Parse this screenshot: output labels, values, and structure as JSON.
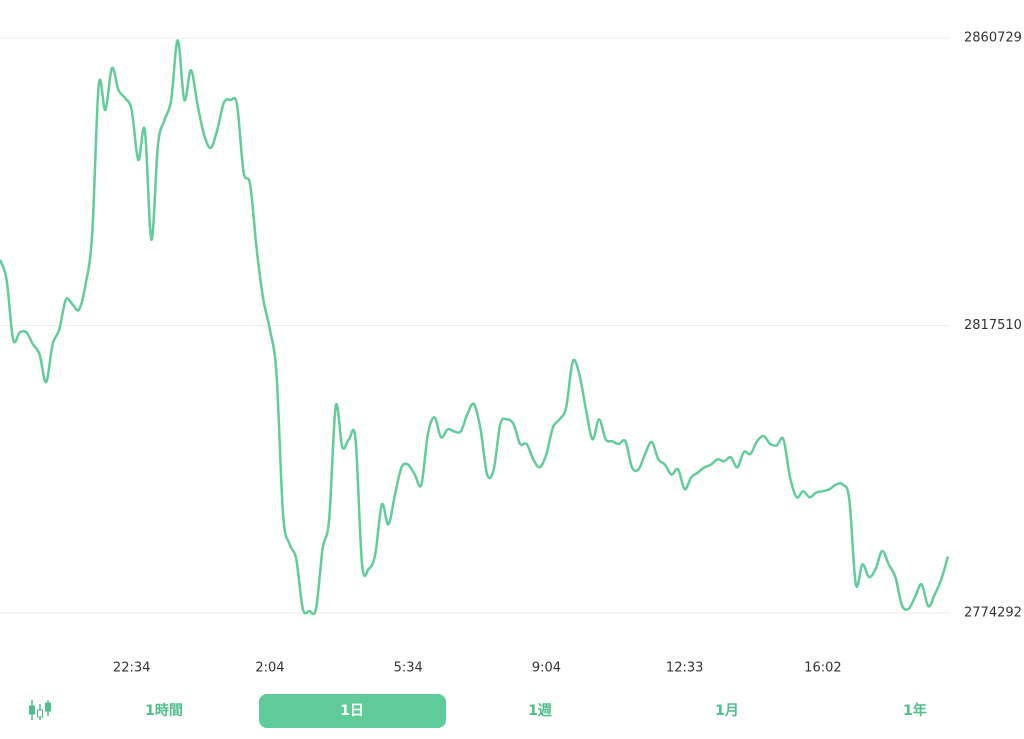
{
  "chart_data": {
    "type": "line",
    "color": "#62cc9a",
    "grid": true,
    "ylim": [
      2774292,
      2860729
    ],
    "yticks": [
      2774292,
      2817510,
      2860729
    ],
    "categories": [
      null,
      null,
      null,
      null,
      null,
      null,
      null,
      null,
      null,
      null,
      null,
      null,
      null,
      null,
      null,
      null,
      null,
      null,
      null,
      null,
      "22:34",
      null,
      null,
      null,
      null,
      null,
      null,
      null,
      null,
      null,
      null,
      null,
      null,
      null,
      null,
      null,
      null,
      null,
      null,
      null,
      null,
      "2:04",
      null,
      null,
      null,
      null,
      null,
      null,
      null,
      null,
      null,
      null,
      null,
      null,
      null,
      null,
      null,
      null,
      null,
      null,
      null,
      null,
      "5:34",
      null,
      null,
      null,
      null,
      null,
      null,
      null,
      null,
      null,
      null,
      null,
      null,
      null,
      null,
      null,
      null,
      null,
      null,
      null,
      null,
      "9:04",
      null,
      null,
      null,
      null,
      null,
      null,
      null,
      null,
      null,
      null,
      null,
      null,
      null,
      null,
      null,
      null,
      null,
      null,
      null,
      null,
      "12:33",
      null,
      null,
      null,
      null,
      null,
      null,
      null,
      null,
      null,
      null,
      null,
      null,
      null,
      null,
      null,
      null,
      null,
      null,
      null,
      null,
      "16:02",
      null,
      null,
      null,
      null,
      null,
      null,
      null,
      null,
      null,
      null,
      null,
      null,
      null,
      null,
      null,
      null,
      null,
      null,
      null
    ],
    "values": [
      2827400,
      2824400,
      2815400,
      2816500,
      2816500,
      2814700,
      2813200,
      2809000,
      2814700,
      2816900,
      2821400,
      2820700,
      2819900,
      2823700,
      2831200,
      2853700,
      2849900,
      2856200,
      2852900,
      2851700,
      2849900,
      2842400,
      2846900,
      2830400,
      2844700,
      2848400,
      2851400,
      2860400,
      2851400,
      2855900,
      2850700,
      2846200,
      2844200,
      2846900,
      2851000,
      2851400,
      2850700,
      2840600,
      2838700,
      2828900,
      2821400,
      2816900,
      2810200,
      2789100,
      2784600,
      2782400,
      2774900,
      2774600,
      2774900,
      2783900,
      2788400,
      2805400,
      2799200,
      2800400,
      2800400,
      2781600,
      2780900,
      2783100,
      2790600,
      2787600,
      2792100,
      2796200,
      2796600,
      2795100,
      2793600,
      2801200,
      2803700,
      2800700,
      2801900,
      2801600,
      2801600,
      2804200,
      2805700,
      2801900,
      2795100,
      2795900,
      2802700,
      2803400,
      2802700,
      2799700,
      2799700,
      2797400,
      2796200,
      2798200,
      2802200,
      2803400,
      2805200,
      2812100,
      2810200,
      2804900,
      2800400,
      2803400,
      2800400,
      2800100,
      2799700,
      2800100,
      2796200,
      2795900,
      2798200,
      2800000,
      2797400,
      2796600,
      2795100,
      2795900,
      2792900,
      2794700,
      2795400,
      2796200,
      2796600,
      2797400,
      2797100,
      2797700,
      2796200,
      2798500,
      2798200,
      2800100,
      2800900,
      2799700,
      2799500,
      2800400,
      2794700,
      2791700,
      2792600,
      2791700,
      2792400,
      2792600,
      2792900,
      2793600,
      2793600,
      2791400,
      2778600,
      2781600,
      2779700,
      2780900,
      2783600,
      2781600,
      2779700,
      2775500,
      2774900,
      2776700,
      2778600,
      2775300,
      2777100,
      2779400,
      2782800
    ]
  },
  "tabs": [
    "1時間",
    "1日",
    "1週",
    "1月",
    "1年"
  ],
  "selected_tab": 1
}
